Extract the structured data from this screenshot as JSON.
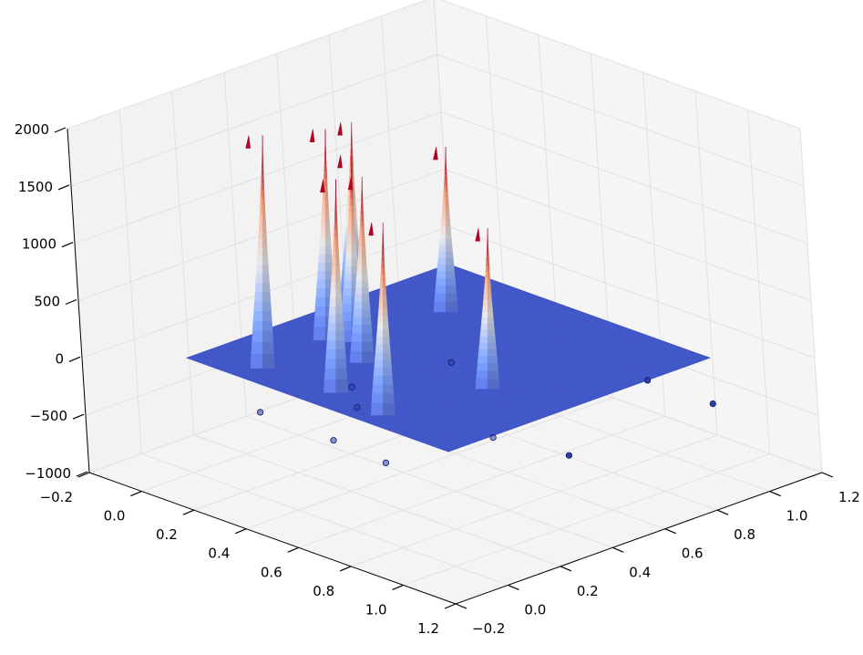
{
  "chart_data": {
    "type": "surface3d",
    "title": "",
    "xlabel": "",
    "ylabel": "",
    "zlabel": "",
    "grid": true,
    "colormap": "coolwarm",
    "xlim": [
      -0.2,
      1.2
    ],
    "ylim": [
      -0.2,
      1.2
    ],
    "zlim": [
      -1000,
      2000
    ],
    "x_ticks": [
      "−0.2",
      "0.0",
      "0.2",
      "0.4",
      "0.6",
      "0.8",
      "1.0",
      "1.2"
    ],
    "y_ticks": [
      "−0.2",
      "0.0",
      "0.2",
      "0.4",
      "0.6",
      "0.8",
      "1.0",
      "1.2"
    ],
    "z_ticks": [
      "2000",
      "1500",
      "1000",
      "500",
      "0",
      "−500",
      "−1000"
    ],
    "surface": {
      "x_range": [
        0,
        1
      ],
      "y_range": [
        0,
        1
      ],
      "baseline_z": 0
    },
    "peaks": [
      {
        "x": 0.05,
        "y": 0.58,
        "z": 1620
      },
      {
        "x": 0.17,
        "y": 0.36,
        "z": 1840
      },
      {
        "x": 0.23,
        "y": 0.4,
        "z": 1630
      },
      {
        "x": 0.2,
        "y": 0.09,
        "z": 2030
      },
      {
        "x": 0.36,
        "y": 0.31,
        "z": 1620
      },
      {
        "x": 0.25,
        "y": 0.74,
        "z": 1440
      },
      {
        "x": 0.47,
        "y": 0.1,
        "z": 1860
      },
      {
        "x": 0.68,
        "y": 0.07,
        "z": 1680
      },
      {
        "x": 0.74,
        "y": 0.41,
        "z": 1400
      }
    ],
    "scatter_points": [
      {
        "x": 0.05,
        "y": 0.58,
        "z": -400
      },
      {
        "x": 0.18,
        "y": 0.36,
        "z": -400
      },
      {
        "x": 0.22,
        "y": 0.4,
        "z": -400
      },
      {
        "x": 0.18,
        "y": 0.09,
        "z": -400
      },
      {
        "x": 0.34,
        "y": 0.3,
        "z": -400
      },
      {
        "x": 0.28,
        "y": 0.72,
        "z": -400
      },
      {
        "x": 0.47,
        "y": 0.08,
        "z": -400
      },
      {
        "x": 0.69,
        "y": 0.06,
        "z": -400
      },
      {
        "x": 0.76,
        "y": 0.4,
        "z": -400
      },
      {
        "x": 1.0,
        "y": 0.45,
        "z": -400
      },
      {
        "x": 1.0,
        "y": 1.0,
        "z": -400
      },
      {
        "x": 0.75,
        "y": 1.0,
        "z": -400
      }
    ]
  }
}
